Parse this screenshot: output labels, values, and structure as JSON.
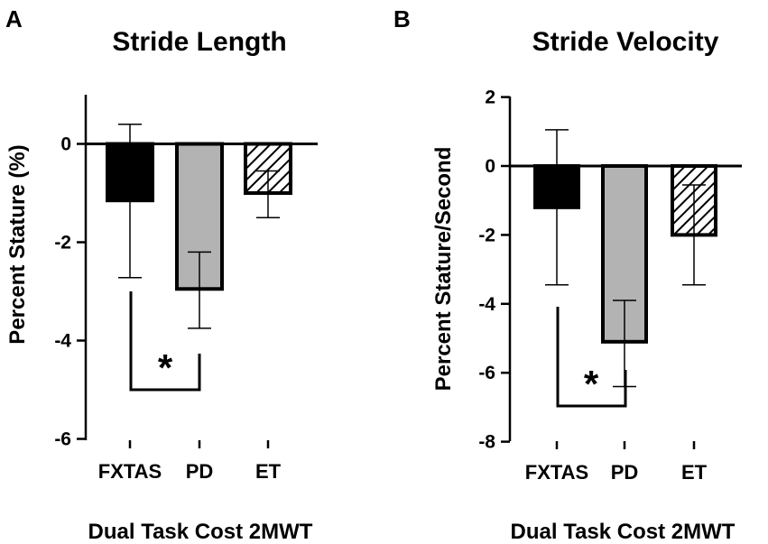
{
  "chart_data": [
    {
      "panel": "A",
      "type": "bar",
      "title": "Stride Length",
      "ylabel": "Percent Stature (%)",
      "xlabel": "Dual Task Cost 2MWT",
      "ylim": [
        -6,
        1
      ],
      "yticks": [
        0,
        -2,
        -4,
        -6
      ],
      "categories": [
        "FXTAS",
        "PD",
        "ET"
      ],
      "values": [
        -1.15,
        -2.95,
        -1.0
      ],
      "error_low": [
        -2.72,
        -3.75,
        -1.5
      ],
      "error_high": [
        0.4,
        -2.2,
        -0.55
      ],
      "fills": [
        "solid-black",
        "gray",
        "hatched"
      ],
      "significance": {
        "from": "FXTAS",
        "to": "PD",
        "label": "*"
      }
    },
    {
      "panel": "B",
      "type": "bar",
      "title": "Stride Velocity",
      "ylabel": "Percent Stature/Second",
      "xlabel": "Dual Task Cost 2MWT",
      "ylim": [
        -8,
        2
      ],
      "yticks": [
        2,
        0,
        -2,
        -4,
        -6,
        -8
      ],
      "categories": [
        "FXTAS",
        "PD",
        "ET"
      ],
      "values": [
        -1.2,
        -5.1,
        -2.0
      ],
      "error_low": [
        -3.45,
        -6.4,
        -3.45
      ],
      "error_high": [
        1.05,
        -3.9,
        -0.55
      ],
      "fills": [
        "solid-black",
        "gray",
        "hatched"
      ],
      "significance": {
        "from": "FXTAS",
        "to": "PD",
        "label": "*"
      }
    }
  ],
  "colors": {
    "bar_solid": "#000000",
    "bar_gray": "#b3b3b3",
    "axis": "#000000"
  }
}
